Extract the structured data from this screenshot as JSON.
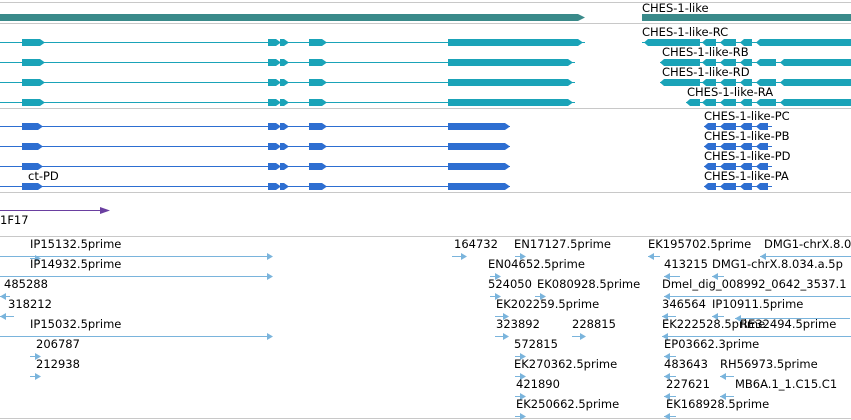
{
  "colors": {
    "gene": "#3a8a8a",
    "transcript": "#1aa3b8",
    "cds": "#2d6ed1",
    "est": "#7ab4dc",
    "other": "#6a3fa0",
    "divider": "#c8c8c8"
  },
  "gene_track": {
    "gene_label": "CHES-1-like",
    "rna_labels": [
      "CHES-1-like-RC",
      "CHES-1-like-RB",
      "CHES-1-like-RD",
      "CHES-1-like-RA"
    ],
    "protein_labels": [
      "CHES-1-like-PC",
      "CHES-1-like-PB",
      "CHES-1-like-PD",
      "CHES-1-like-PA"
    ],
    "left_protein_label": "ct-PD",
    "misc_label": "1F17"
  },
  "est_labels": [
    "IP15132.5prime",
    "IP14932.5prime",
    "485288",
    "318212",
    "IP15032.5prime",
    "206787",
    "212938",
    "164732",
    "EN17127.5prime",
    "EN04652.5prime",
    "524050",
    "EK080928.5prime",
    "EK202259.5prime",
    "323892",
    "228815",
    "572815",
    "EK270362.5prime",
    "421890",
    "EK250662.5prime",
    "EK195702.5prime",
    "DMG1-chrX.8.0",
    "413215",
    "DMG1-chrX.8.034.a.5p",
    "Dmel_dig_008992_0642_3537.1",
    "346564",
    "IP10911.5prime",
    "EK222528.5prime",
    "RE32494.5prime",
    "EP03662.3prime",
    "483643",
    "RH56973.5prime",
    "227621",
    "MB6A.1_1.C15.C1",
    "EK168928.5prime"
  ]
}
